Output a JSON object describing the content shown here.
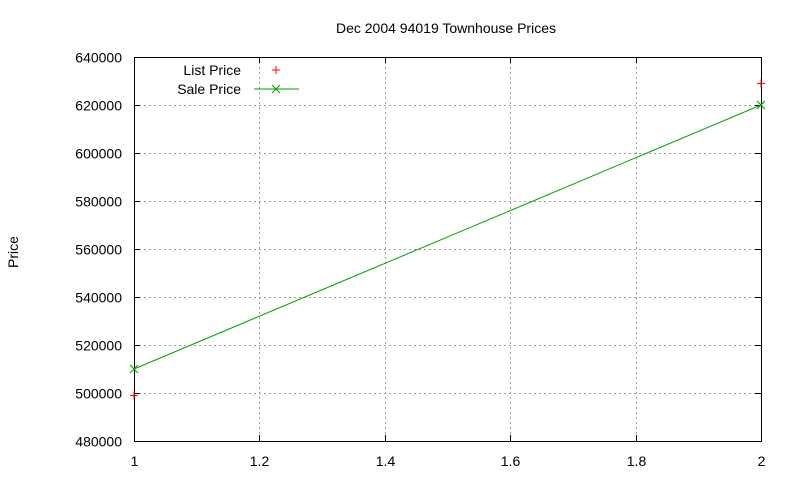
{
  "chart_data": {
    "type": "line",
    "title": "Dec 2004 94019 Townhouse Prices",
    "xlabel": "",
    "ylabel": "Price",
    "xlim": [
      1,
      2
    ],
    "ylim": [
      480000,
      640000
    ],
    "x_ticks": [
      "1",
      "1.2",
      "1.4",
      "1.6",
      "1.8",
      "2"
    ],
    "y_ticks": [
      "480000",
      "500000",
      "520000",
      "540000",
      "560000",
      "580000",
      "600000",
      "620000",
      "640000"
    ],
    "grid": true,
    "legend_position": "top-left",
    "series": [
      {
        "name": "List Price",
        "style": "points",
        "marker": "+",
        "color": "#ff0000",
        "x": [
          1,
          2
        ],
        "values": [
          499000,
          629000
        ]
      },
      {
        "name": "Sale Price",
        "style": "linespoints",
        "marker": "x",
        "color": "#00a000",
        "x": [
          1,
          2
        ],
        "values": [
          510000,
          620000
        ]
      }
    ]
  }
}
